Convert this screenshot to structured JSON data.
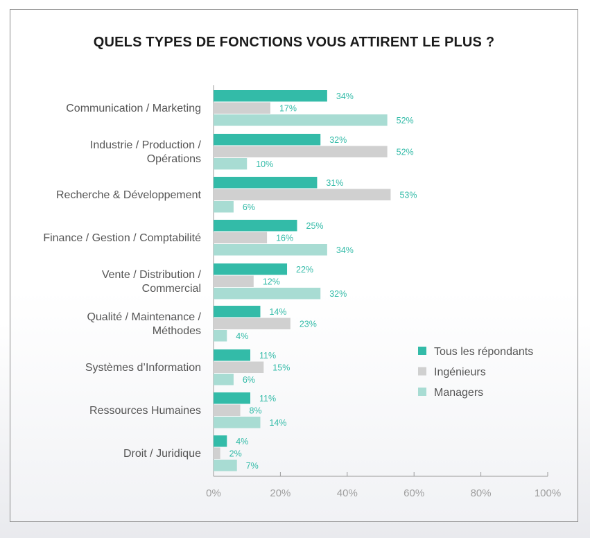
{
  "chart_data": {
    "type": "bar",
    "orientation": "horizontal",
    "title": "QUELS TYPES DE FONCTIONS VOUS ATTIRENT LE PLUS ?",
    "categories": [
      [
        "Communication / Marketing"
      ],
      [
        "Industrie / Production /",
        "Opérations"
      ],
      [
        "Recherche & Développement"
      ],
      [
        "Finance / Gestion / Comptabilité"
      ],
      [
        "Vente / Distribution /",
        "Commercial"
      ],
      [
        "Qualité / Maintenance /",
        "Méthodes"
      ],
      [
        "Systèmes d’Information"
      ],
      [
        "Ressources Humaines"
      ],
      [
        "Droit / Juridique"
      ]
    ],
    "series": [
      {
        "name": "Tous les répondants",
        "color": "#33bba8",
        "values": [
          34,
          32,
          31,
          25,
          22,
          14,
          11,
          11,
          4
        ]
      },
      {
        "name": "Ingénieurs",
        "color": "#d0d0d0",
        "values": [
          17,
          52,
          53,
          16,
          12,
          23,
          15,
          8,
          2
        ]
      },
      {
        "name": "Managers",
        "color": "#a8dcd3",
        "values": [
          52,
          10,
          6,
          34,
          32,
          4,
          6,
          14,
          7
        ]
      }
    ],
    "xlim": [
      0,
      100
    ],
    "xticks": [
      "0%",
      "20%",
      "40%",
      "60%",
      "80%",
      "100%"
    ],
    "value_suffix": "%",
    "legend_position": "right",
    "label_color": "#33bba8",
    "axis_color": "#9a9a9a",
    "tick_label_color": "#a0a0a0"
  }
}
